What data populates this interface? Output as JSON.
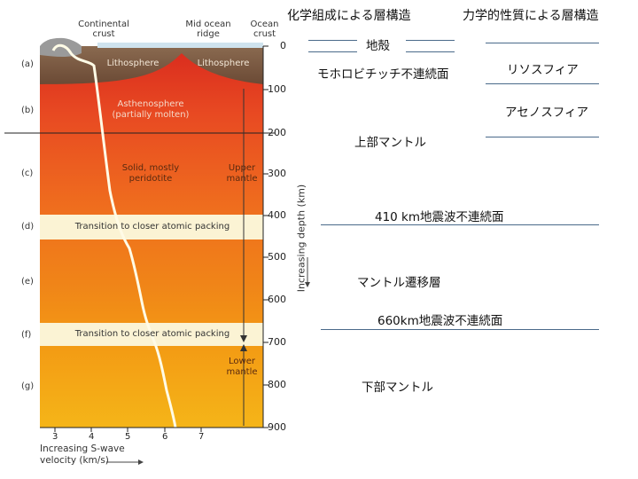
{
  "figure": {
    "top_labels": {
      "continental_crust": "Continental\ncrust",
      "mid_ocean_ridge": "Mid ocean\nridge",
      "ocean_crust": "Ocean\ncrust"
    },
    "layers": {
      "lithosphere_left": "Lithosphere",
      "lithosphere_right": "Lithosphere",
      "asthenosphere": "Asthenosphere\n(partially molten)",
      "solid_peridotite": "Solid, mostly\nperidotite",
      "upper_mantle": "Upper\nmantle",
      "transition_d": "Transition to closer atomic packing",
      "transition_f": "Transition to closer atomic packing",
      "lower_mantle": "Lower\nmantle"
    },
    "row_letters": [
      "(a)",
      "(b)",
      "(c)",
      "(d)",
      "(e)",
      "(f)",
      "(g)"
    ],
    "depth_ticks": [
      "0",
      "100",
      "200",
      "300",
      "400",
      "500",
      "600",
      "700",
      "800",
      "900"
    ],
    "depth_axis_label": "Increasing depth (km)",
    "velocity_ticks": [
      "3",
      "4",
      "5",
      "6",
      "7"
    ],
    "velocity_axis_label": "Increasing S-wave\nvelocity (km/s)",
    "colors": {
      "lithosphere": "#7a5a40",
      "asthenosphere_top": "#e8442a",
      "upper_mantle": "#ee7a1e",
      "transition_band": "#fbf3d4",
      "lower_mantle": "#f2aa18",
      "velocity_curve": "#fffbe6"
    }
  },
  "headers": {
    "chemical": "化学組成による層構造",
    "mechanical": "力学的性質による層構造"
  },
  "chemical_layers": {
    "crust": "地殻",
    "moho": "モホロビチッチ不連続面",
    "upper_mantle": "上部マントル",
    "d410": "410 km地震波不連続面",
    "transition": "マントル遷移層",
    "d660": "660km地震波不連続面",
    "lower_mantle": "下部マントル"
  },
  "mechanical_layers": {
    "lithosphere": "リソスフィア",
    "asthenosphere": "アセノスフィア"
  }
}
